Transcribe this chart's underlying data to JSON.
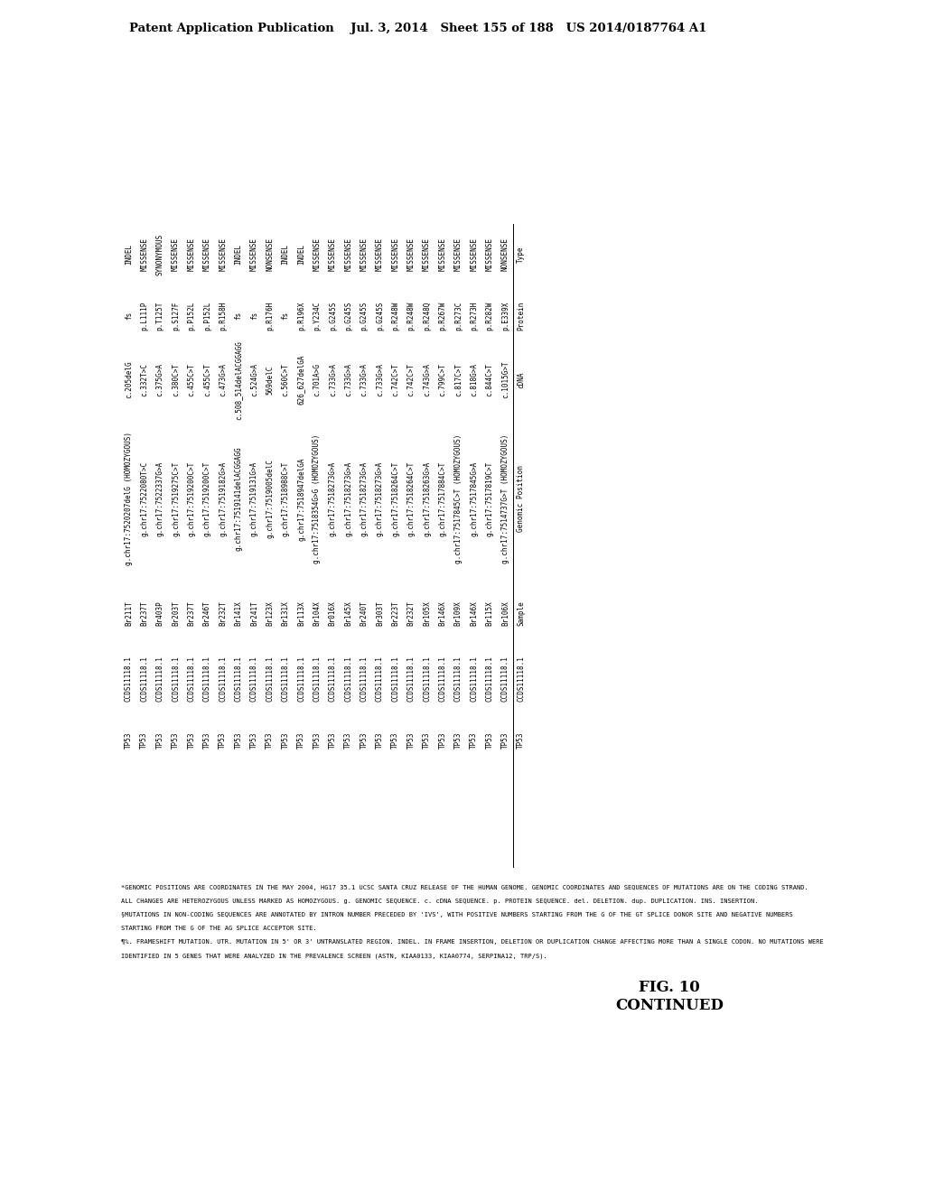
{
  "header_text": "Patent Application Publication    Jul. 3, 2014   Sheet 155 of 188   US 2014/0187764 A1",
  "fig_label": "FIG. 10\nCONTINUED",
  "table_rows": [
    [
      "TP53",
      "CCDS11118.1",
      "Br211T",
      "g.chr17:7520207delG (HOMOZYGOUS)",
      "c.205delG",
      "fs",
      "INDEL"
    ],
    [
      "TP53",
      "CCDS11118.1",
      "Br237T",
      "g.chr17:7522080T>C",
      "c.332T>C",
      "p.L111P",
      "MISSENSE"
    ],
    [
      "TP53",
      "CCDS11118.1",
      "Br403P",
      "g.chr17:7522337G>A",
      "c.375G>A",
      "p.T125T",
      "SYNONYMOUS"
    ],
    [
      "TP53",
      "CCDS11118.1",
      "Br203T",
      "g.chr17:7519275C>T",
      "c.380C>T",
      "p.S127F",
      "MISSENSE"
    ],
    [
      "TP53",
      "CCDS11118.1",
      "Br237T",
      "g.chr17:7519200C>T",
      "c.455C>T",
      "p.P152L",
      "MISSENSE"
    ],
    [
      "TP53",
      "CCDS11118.1",
      "Br246T",
      "g.chr17:7519200C>T",
      "c.455C>T",
      "p.P152L",
      "MISSENSE"
    ],
    [
      "TP53",
      "CCDS11118.1",
      "Br232T",
      "g.chr17:7519182G>A",
      "c.473G>A",
      "p.R158H",
      "MISSENSE"
    ],
    [
      "TP53",
      "CCDS11118.1",
      "Br141X",
      "g.chr17:7519141delACGGAGG",
      "c.508_514delACGGAGG",
      "fs",
      "INDEL"
    ],
    [
      "TP53",
      "CCDS11118.1",
      "Br241T",
      "g.chr17:7519131G>A",
      "c.524G>A",
      "fs",
      "MISSENSE"
    ],
    [
      "TP53",
      "CCDS11118.1",
      "Br123X",
      "g.chr17:7519005delC",
      "569delC",
      "p.R176H",
      "NONSENSE"
    ],
    [
      "TP53",
      "CCDS11118.1",
      "Br131X",
      "g.chr17:7518988C>T",
      "c.560C>T",
      "fs",
      "INDEL"
    ],
    [
      "TP53",
      "CCDS11118.1",
      "Br113X",
      "g.chr17:7518947delGA",
      "626_627delGA",
      "p.R196X",
      "INDEL"
    ],
    [
      "TP53",
      "CCDS11118.1",
      "Br104X",
      "g.chr17:7518354G>G (HOMOZYGOUS)",
      "c.701A>G",
      "p.Y234C",
      "MISSENSE"
    ],
    [
      "TP53",
      "CCDS11118.1",
      "Br016X",
      "g.chr17:7518273G>A",
      "c.733G>A",
      "p.G245S",
      "MISSENSE"
    ],
    [
      "TP53",
      "CCDS11118.1",
      "Br145X",
      "g.chr17:7518273G>A",
      "c.733G>A",
      "p.G245S",
      "MISSENSE"
    ],
    [
      "TP53",
      "CCDS11118.1",
      "Br240T",
      "g.chr17:7518273G>A",
      "c.733G>A",
      "p.G245S",
      "MISSENSE"
    ],
    [
      "TP53",
      "CCDS11118.1",
      "Br303T",
      "g.chr17:7518273G>A",
      "c.733G>A",
      "p.G245S",
      "MISSENSE"
    ],
    [
      "TP53",
      "CCDS11118.1",
      "Br223T",
      "g.chr17:7518264C>T",
      "c.742C>T",
      "p.R248W",
      "MISSENSE"
    ],
    [
      "TP53",
      "CCDS11118.1",
      "Br232T",
      "g.chr17:7518264C>T",
      "c.742C>T",
      "p.R248W",
      "MISSENSE"
    ],
    [
      "TP53",
      "CCDS11118.1",
      "Br105X",
      "g.chr17:7518263G>A",
      "c.743G>A",
      "p.R248Q",
      "MISSENSE"
    ],
    [
      "TP53",
      "CCDS11118.1",
      "Br146X",
      "g.chr17:7517884C>T",
      "c.799C>T",
      "p.R267W",
      "MISSENSE"
    ],
    [
      "TP53",
      "CCDS11118.1",
      "Br109X",
      "g.chr17:7517845C>T (HOMOZYGOUS)",
      "c.817C>T",
      "p.R273C",
      "MISSENSE"
    ],
    [
      "TP53",
      "CCDS11118.1",
      "Br146X",
      "g.chr17:7517845G>A",
      "c.818G>A",
      "p.R273H",
      "MISSENSE"
    ],
    [
      "TP53",
      "CCDS11118.1",
      "Br115X",
      "g.chr17:7517819C>T",
      "c.844C>T",
      "p.R282W",
      "MISSENSE"
    ],
    [
      "TP53",
      "CCDS11118.1",
      "Br106X",
      "g.chr17:7514737G>T (HOMOZYGOUS)",
      "c.1015G>T",
      "p.E339X",
      "NONSENSE"
    ]
  ],
  "col_headers": [
    "",
    "CCDS11118.1",
    "Sample",
    "Genomic Position",
    "cDNA",
    "Protein",
    "Type"
  ],
  "footnotes": [
    "*GENOMIC POSITIONS ARE COORDINATES IN THE MAY 2004, HG17 35.1 UCSC SANTA CRUZ RELEASE OF THE HUMAN GENOME. GENOMIC COORDINATES AND SEQUENCES OF MUTATIONS ARE ON THE CODING STRAND.",
    "ALL CHANGES ARE HETEROZYGOUS UNLESS MARKED AS HOMOZYGOUS. g. GENOMIC SEQUENCE. c. cDNA SEQUENCE. p. PROTEIN SEQUENCE. del. DELETION. dup. DUPLICATION. INS. INSERTION.",
    "§MUTATIONS IN NON-CODING SEQUENCES ARE ANNOTATED BY INTRON NUMBER PRECEDED BY 'IVS', WITH POSITIVE NUMBERS STARTING FROM THE G OF THE GT SPLICE DONOR SITE AND NEGATIVE NUMBERS",
    "STARTING FROM THE G OF THE AG SPLICE ACCEPTOR SITE.",
    "¶%. FRAMESHIFT MUTATION. UTR. MUTATION IN 5' OR 3' UNTRANSLATED REGION. INDEL. IN FRAME INSERTION, DELETION OR DUPLICATION CHANGE AFFECTING MORE THAN A SINGLE CODON. NO MUTATIONS WERE",
    "IDENTIFIED IN 5 GENES THAT WERE ANALYZED IN THE PREVALENCE SCREEN (ASTN, KIAA0133, KIAA0774, SERPINA12, TRP/S)."
  ],
  "bg_color": "#ffffff",
  "text_color": "#000000"
}
